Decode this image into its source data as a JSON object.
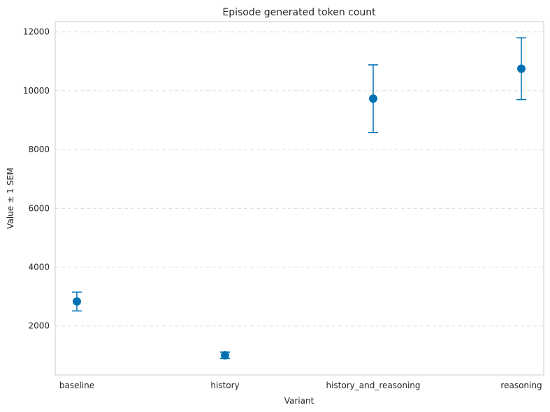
{
  "chart_data": {
    "type": "scatter",
    "title": "Episode generated token count",
    "xlabel": "Variant",
    "ylabel": "Value ± 1 SEM",
    "categories": [
      "baseline",
      "history",
      "history_and_reasoning",
      "reasoning"
    ],
    "series": [
      {
        "values": [
          2830,
          1000,
          9730,
          10750
        ],
        "sem": [
          320,
          110,
          1150,
          1050
        ]
      }
    ],
    "ylim": [
      330,
      12350
    ],
    "yticks": [
      2000,
      4000,
      6000,
      8000,
      10000,
      12000
    ],
    "ytick_labels": [
      "2000",
      "4000",
      "6000",
      "8000",
      "10000",
      "12000"
    ],
    "grid": "y-dashed",
    "color": "#0072b2"
  }
}
